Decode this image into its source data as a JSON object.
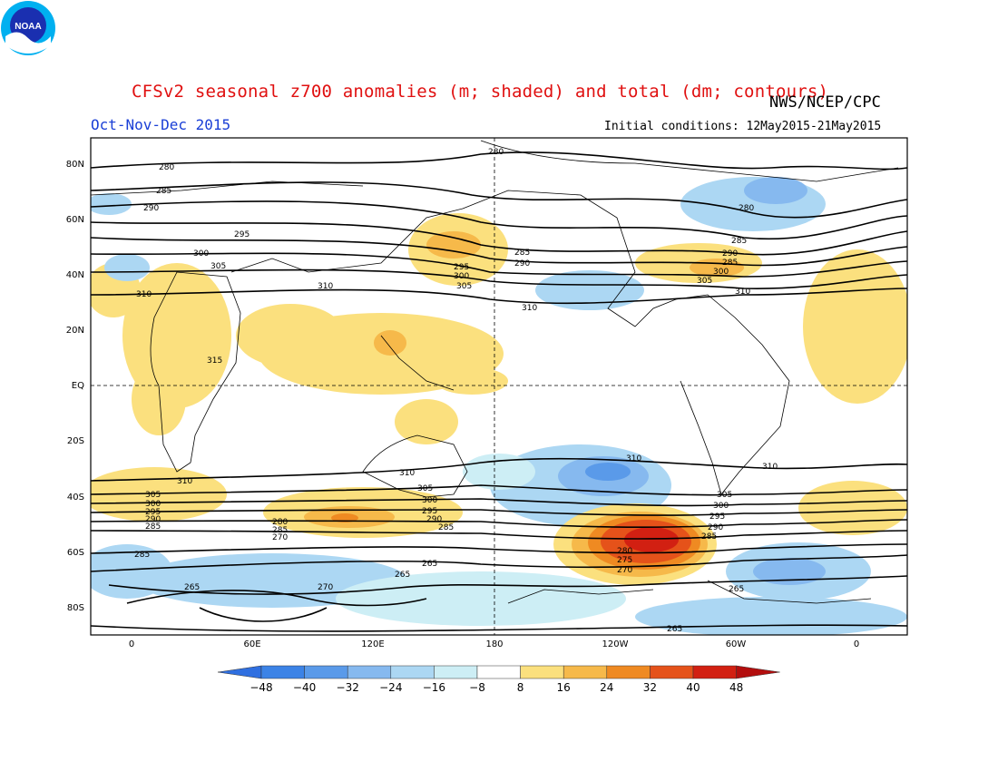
{
  "header": {
    "title": "CFSv2 seasonal z700 anomalies (m; shaded) and total (dm; contours)",
    "agency": "NWS/NCEP/CPC",
    "season": "Oct-Nov-Dec 2015",
    "initial_conditions": "Initial conditions: 12May2015-21May2015",
    "logo_text": "NOAA"
  },
  "map": {
    "lat_ticks": [
      "80N",
      "60N",
      "40N",
      "20N",
      "EQ",
      "20S",
      "40S",
      "60S",
      "80S"
    ],
    "lon_ticks": [
      "0",
      "60E",
      "120E",
      "180",
      "120W",
      "60W",
      "0"
    ],
    "contour_labels": [
      "280",
      "285",
      "290",
      "295",
      "300",
      "305",
      "310",
      "315",
      "270",
      "265",
      "275"
    ]
  },
  "colorbar": {
    "labels": [
      "-48",
      "-40",
      "-32",
      "-24",
      "-16",
      "-8",
      "8",
      "16",
      "24",
      "32",
      "40",
      "48"
    ],
    "colors": [
      "#2f6fe0",
      "#3c83e6",
      "#5a9ae9",
      "#86b9ef",
      "#acd7f3",
      "#cdeef5",
      "#ffffff",
      "#fbe07e",
      "#f6b94a",
      "#ef8a22",
      "#e5521a",
      "#d22012",
      "#b30e0e"
    ]
  }
}
